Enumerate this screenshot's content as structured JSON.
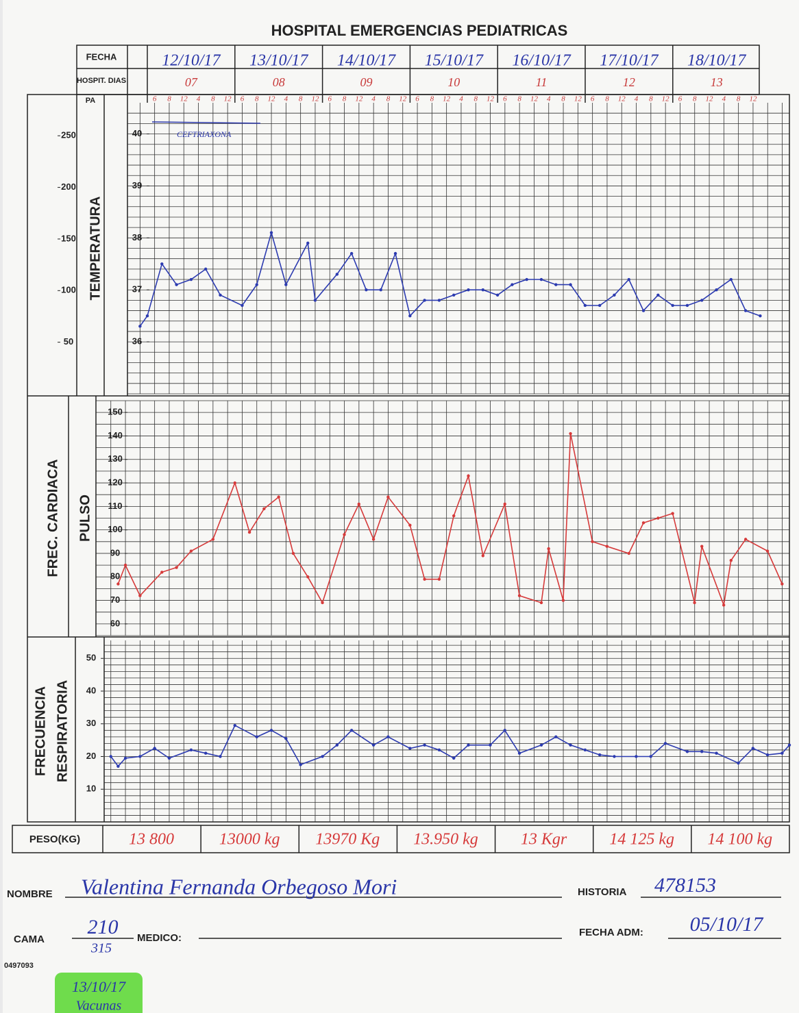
{
  "header": {
    "title": "HOSPITAL EMERGENCIAS PEDIATRICAS"
  },
  "labels": {
    "fecha": "FECHA",
    "hospit_dias": "HOSPIT. DIAS",
    "peso": "PESO(KG)",
    "nombre": "NOMBRE",
    "historia": "HISTORIA",
    "cama": "CAMA",
    "medico": "MEDICO:",
    "fecha_adm": "FECHA ADM:",
    "form_code": "0497093"
  },
  "dates": [
    "12/10/17",
    "13/10/17",
    "14/10/17",
    "15/10/17",
    "16/10/17",
    "17/10/17",
    "18/10/17"
  ],
  "days": [
    "07",
    "08",
    "09",
    "10",
    "11",
    "12",
    "13"
  ],
  "hours": [
    "6",
    "8",
    "12",
    "4",
    "8",
    "12"
  ],
  "weights": [
    "13 800",
    "13000 kg",
    "13970 Kg",
    "13.950 kg",
    "13 Kgr",
    "14 125 kg",
    "14 100 kg"
  ],
  "patient": {
    "name": "Valentina Fernanda Orbegoso Mori",
    "historia": "478153",
    "cama": "210",
    "cama_alt": "315",
    "fecha_adm": "05/10/17"
  },
  "annotation": "CEFTRIAXONA",
  "note": {
    "date": "13/10/17",
    "text": "Vacunas"
  },
  "chart_data": [
    {
      "type": "line",
      "ylabel": "TEMPERATURA",
      "y2label": "PA",
      "color": "#2c3bb0",
      "x": [
        -0.5,
        0,
        1,
        2,
        3,
        4,
        5,
        6.5,
        7.5,
        8.5,
        9.5,
        11,
        11.5,
        13,
        14,
        15,
        16,
        17,
        18,
        19,
        20,
        21,
        22,
        23,
        24,
        25,
        26,
        27,
        28,
        29,
        30,
        31,
        32,
        33,
        34,
        35,
        36,
        37,
        38,
        39,
        40,
        41,
        42
      ],
      "values": [
        36.3,
        36.5,
        37.5,
        37.1,
        37.2,
        37.4,
        36.9,
        36.7,
        37.1,
        38.1,
        37.1,
        37.9,
        36.8,
        37.3,
        37.7,
        37.0,
        37.0,
        37.7,
        36.5,
        36.8,
        36.8,
        36.9,
        37.0,
        37.0,
        36.9,
        37.1,
        37.2,
        37.2,
        37.1,
        37.1,
        36.7,
        36.7,
        36.9,
        37.2,
        36.6,
        36.9,
        36.7,
        36.7,
        36.8,
        37.0,
        37.2,
        36.6,
        36.5
      ],
      "xlim": [
        -2.5,
        44
      ],
      "ylim": [
        35,
        40.6
      ],
      "yticks": [
        36,
        37,
        38,
        39,
        40
      ],
      "y2lim": [
        0,
        282
      ],
      "y2ticks": [
        50,
        100,
        150,
        200,
        250
      ]
    },
    {
      "type": "line",
      "section": "FREC. CARDIACA",
      "ylabel": "PULSO",
      "color": "#d63a3a",
      "x": [
        -2,
        -1.5,
        -0.5,
        1,
        2,
        3,
        4.5,
        6,
        7,
        8,
        9,
        10,
        11,
        12,
        13.5,
        14.5,
        15.5,
        16.5,
        18,
        19,
        20,
        21,
        22,
        23,
        24.5,
        25.5,
        27,
        27.5,
        28.5,
        29,
        30.5,
        31.5,
        33,
        34,
        35,
        36,
        37.5,
        38,
        39.5,
        40,
        41,
        42.5,
        43.5
      ],
      "values": [
        77,
        85,
        72,
        82,
        84,
        91,
        96,
        120,
        99,
        109,
        114,
        90,
        80,
        69,
        98,
        111,
        96,
        114,
        102,
        79,
        79,
        106,
        123,
        89,
        111,
        72,
        69,
        92,
        70,
        141,
        95,
        93,
        90,
        103,
        105,
        107,
        69,
        93,
        68,
        87,
        96,
        91,
        77
      ],
      "xlim": [
        -2.5,
        44
      ],
      "ylim": [
        55,
        155
      ],
      "yticks": [
        60,
        70,
        80,
        90,
        100,
        110,
        120,
        130,
        140,
        150
      ]
    },
    {
      "type": "line",
      "section": "FRECUENCIA",
      "ylabel": "RESPIRATORIA",
      "color": "#2c3bb0",
      "x": [
        -2.5,
        -2,
        -1.5,
        -0.5,
        0.5,
        1.5,
        3,
        4,
        5,
        6,
        7.5,
        8.5,
        9.5,
        10.5,
        12,
        13,
        14,
        15.5,
        16.5,
        18,
        19,
        20,
        21,
        22,
        23.5,
        24.5,
        25.5,
        27,
        28,
        29,
        30,
        31,
        32,
        33.5,
        34.5,
        35.5,
        37,
        38,
        39,
        40.5,
        41.5,
        42.5,
        43.5,
        44
      ],
      "values": [
        20,
        17,
        19.5,
        20,
        22.5,
        19.5,
        22,
        21,
        20,
        29.5,
        26,
        28,
        25.5,
        17.5,
        20,
        23.5,
        28,
        23.5,
        26,
        22.5,
        23.5,
        22,
        19.5,
        23.5,
        23.5,
        28,
        21,
        23.5,
        26,
        23.5,
        22,
        20.5,
        20,
        20,
        20,
        24,
        21.5,
        21.5,
        21,
        18,
        22.5,
        20.5,
        21,
        23.5
      ],
      "xlim": [
        -2.5,
        44
      ],
      "ylim": [
        0,
        55.5
      ],
      "yticks": [
        10,
        20,
        30,
        40,
        50
      ]
    }
  ]
}
